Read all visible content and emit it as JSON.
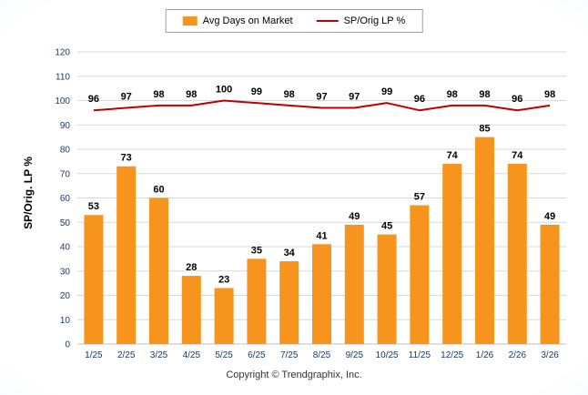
{
  "legend": {
    "bar_label": "Avg Days on Market",
    "line_label": "SP/Orig LP %"
  },
  "footer": "Copyright © Trendgraphix, Inc.",
  "colors": {
    "bar": "#F7941E",
    "line": "#C00000",
    "grid": "#D9D9D9",
    "axis": "#BFBFBF",
    "tick_text": "#17375E",
    "value_text": "#000000"
  },
  "chart_data": {
    "type": "bar",
    "title": "",
    "xlabel": "",
    "ylabel": "SP/Orig. LP %",
    "ylim": [
      0,
      120
    ],
    "ytick_step": 10,
    "grid": true,
    "legend_position": "top",
    "categories": [
      "1/25",
      "2/25",
      "3/25",
      "4/25",
      "5/25",
      "6/25",
      "7/25",
      "8/25",
      "9/25",
      "10/25",
      "11/25",
      "12/25",
      "1/26",
      "2/26",
      "3/26"
    ],
    "series": [
      {
        "name": "Avg Days on Market",
        "type": "bar",
        "values": [
          53,
          73,
          60,
          28,
          23,
          35,
          34,
          41,
          49,
          45,
          57,
          74,
          85,
          74,
          49
        ]
      },
      {
        "name": "SP/Orig LP %",
        "type": "line",
        "values": [
          96,
          97,
          98,
          98,
          100,
          99,
          98,
          97,
          97,
          99,
          96,
          98,
          98,
          96,
          98
        ]
      }
    ]
  }
}
